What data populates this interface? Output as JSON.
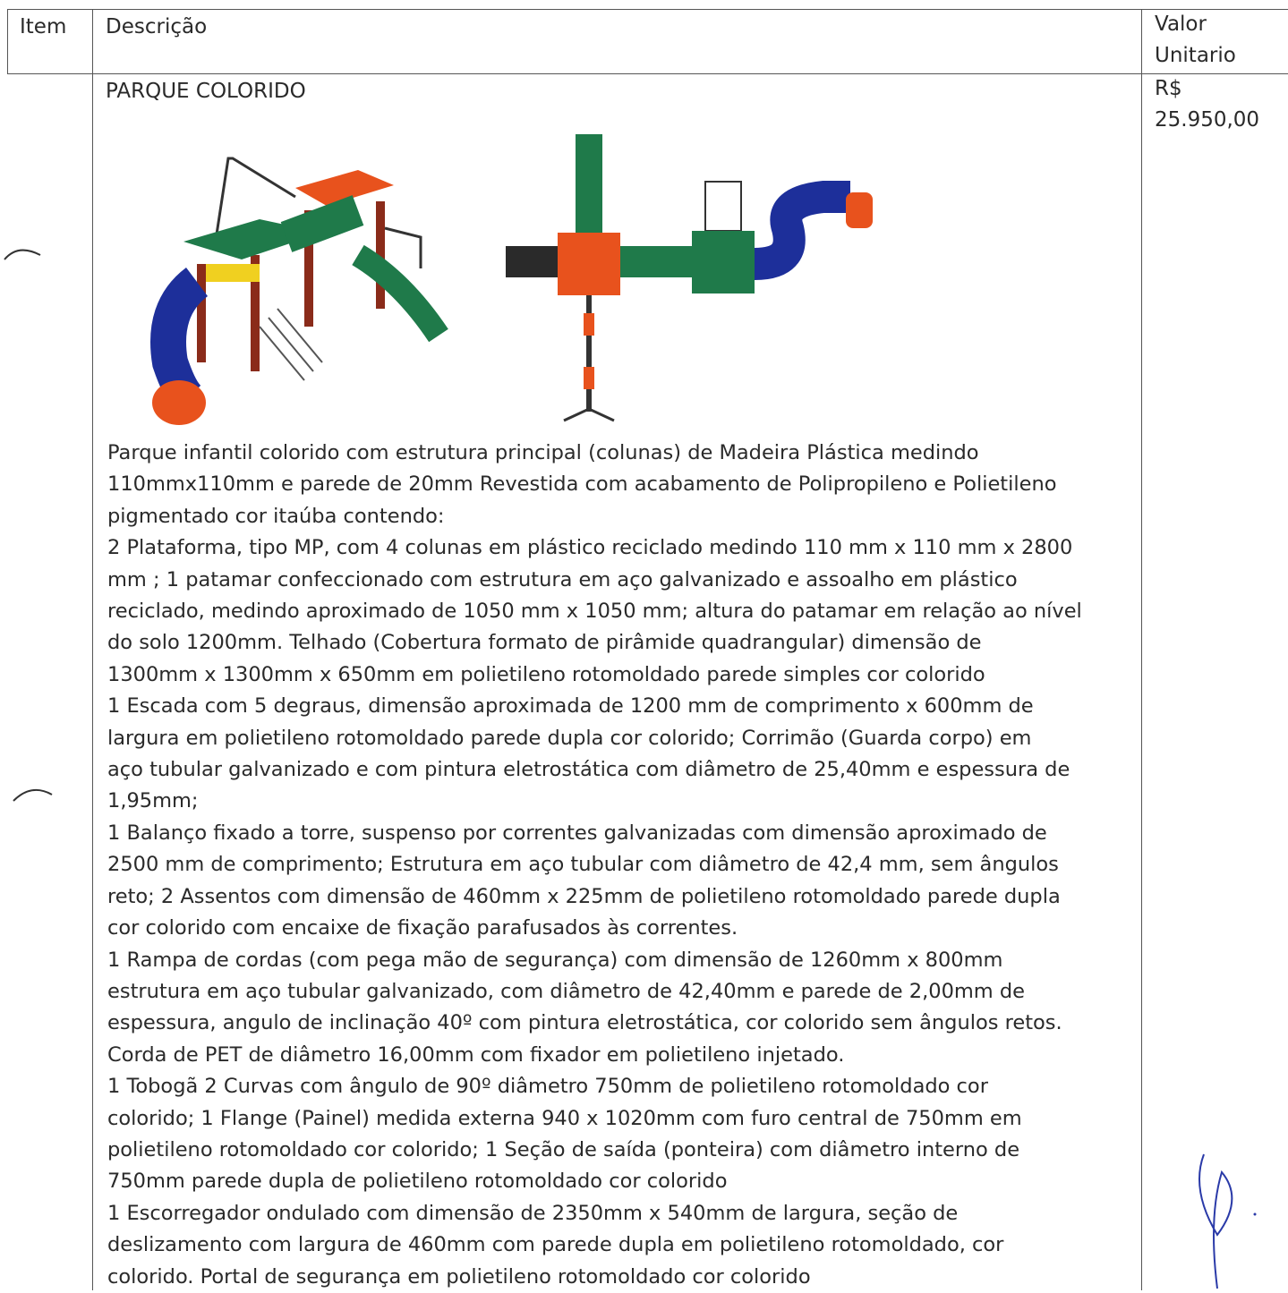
{
  "header": {
    "item": "Item",
    "description": "Descrição",
    "value_lines": [
      "Valor",
      "Unitario"
    ]
  },
  "rows": [
    {
      "title": "PARQUE COLORIDO",
      "description_lines": [
        "Parque infantil colorido com estrutura principal (colunas) de Madeira Plástica medindo",
        "110mmx110mm e parede de 20mm Revestida com acabamento de Polipropileno e Polietileno",
        "pigmentado cor itaúba contendo:",
        "2 Plataforma, tipo MP, com 4 colunas em plástico reciclado medindo 110 mm x 110 mm x 2800",
        "mm ; 1 patamar confeccionado com estrutura em aço galvanizado e assoalho em plástico",
        "reciclado, medindo aproximado de 1050 mm x 1050 mm; altura do patamar em relação ao nível",
        "do solo 1200mm. Telhado (Cobertura formato de pirâmide quadrangular) dimensão de",
        "1300mm x 1300mm x 650mm em polietileno rotomoldado parede simples cor colorido",
        "1 Escada com 5 degraus, dimensão aproximada de 1200 mm de comprimento x 600mm de",
        "largura em polietileno rotomoldado parede dupla cor colorido; Corrimão (Guarda corpo) em",
        "aço tubular galvanizado e com pintura eletrostática com diâmetro de 25,40mm e espessura de",
        "1,95mm;",
        "1 Balanço fixado a torre, suspenso por correntes galvanizadas com dimensão aproximado de",
        "2500 mm de comprimento; Estrutura em aço tubular com diâmetro de 42,4 mm, sem ângulos",
        "reto; 2 Assentos com dimensão de 460mm x 225mm de polietileno rotomoldado parede dupla",
        "cor colorido com encaixe de fixação parafusados às correntes.",
        "1 Rampa de cordas (com pega mão de segurança) com dimensão de 1260mm x 800mm",
        "estrutura em aço tubular galvanizado, com diâmetro de 42,40mm e parede de 2,00mm de",
        "espessura, angulo de inclinação 40º com pintura eletrostática, cor colorido sem ângulos retos.",
        "Corda de PET de diâmetro 16,00mm com fixador em polietileno injetado.",
        "1 Tobogã 2 Curvas com ângulo de 90º diâmetro 750mm de polietileno rotomoldado cor",
        "colorido; 1 Flange (Painel) medida externa 940 x 1020mm com furo central de 750mm em",
        "polietileno rotomoldado cor colorido; 1 Seção de saída (ponteira) com diâmetro interno de",
        "750mm parede dupla de polietileno rotomoldado cor colorido",
        "1 Escorregador ondulado com dimensão de 2350mm x 540mm de largura, seção de",
        "deslizamento com largura de 460mm com parede dupla em polietileno rotomoldado, cor",
        "colorido. Portal de segurança em polietileno rotomoldado cor colorido"
      ],
      "value_lines": [
        "R$",
        "25.950,00"
      ]
    }
  ]
}
